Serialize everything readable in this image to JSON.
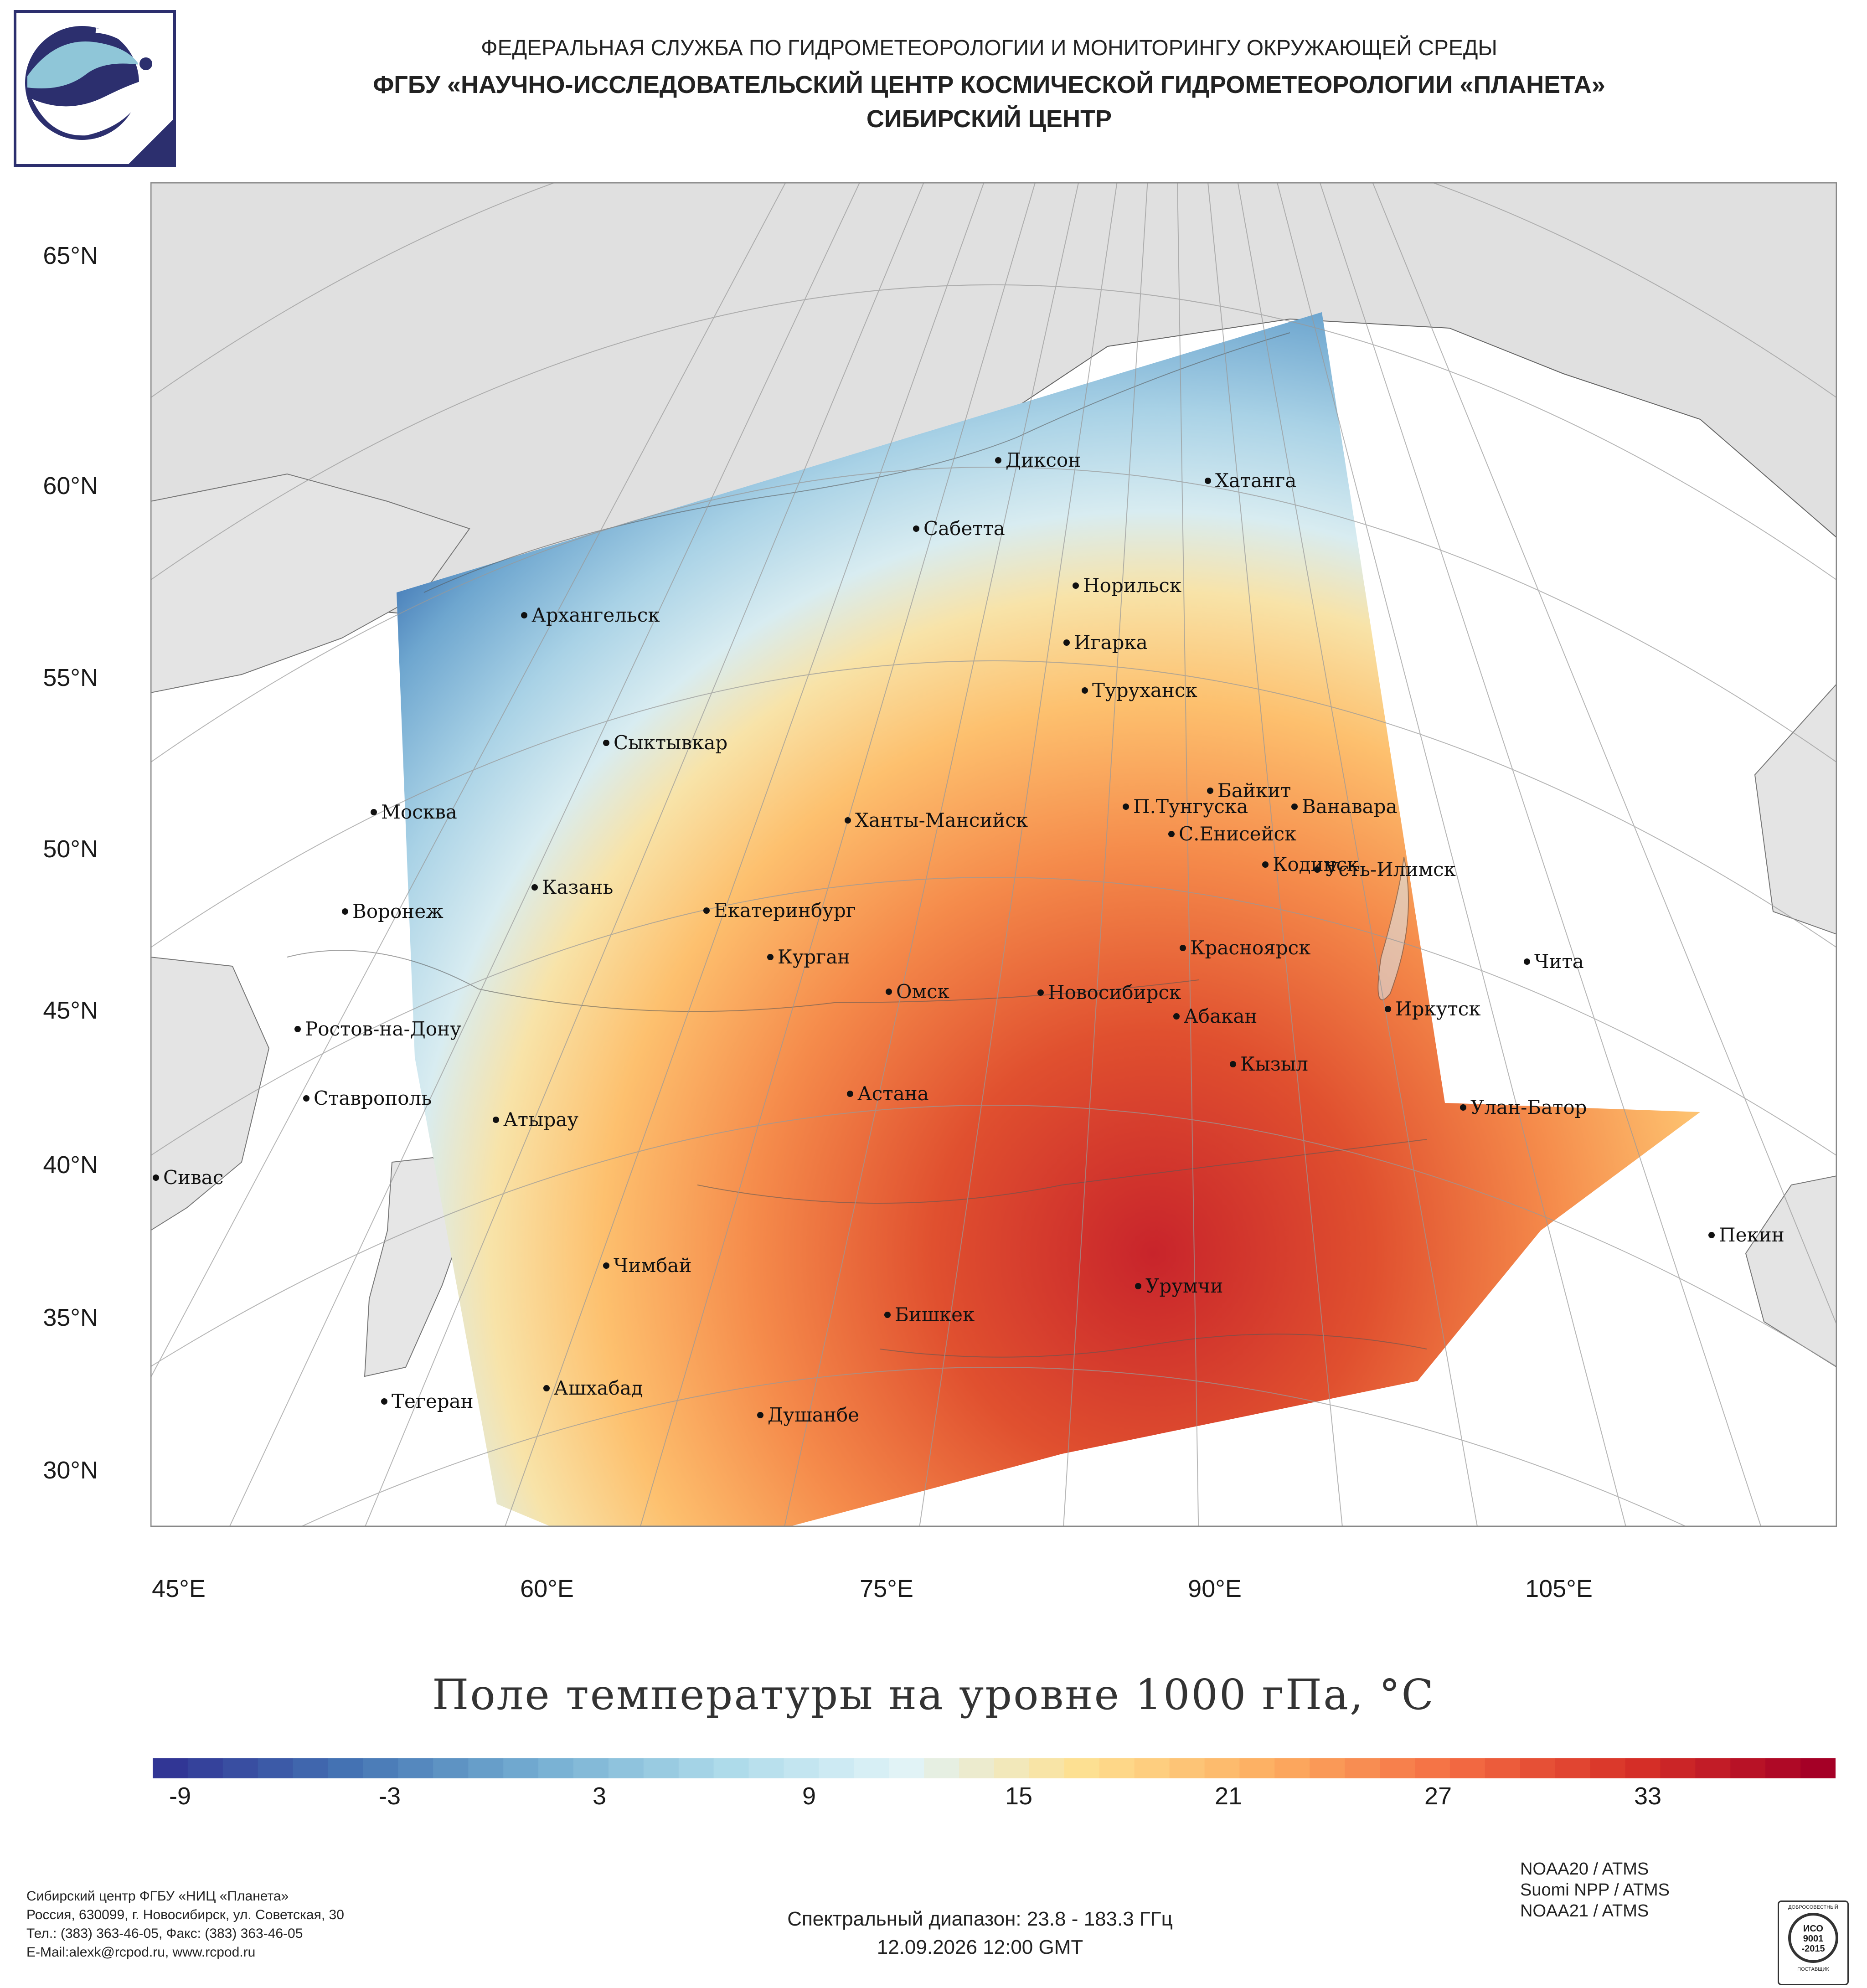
{
  "header": {
    "line1": "ФЕДЕРАЛЬНАЯ СЛУЖБА ПО ГИДРОМЕТЕОРОЛОГИИ И МОНИТОРИНГУ ОКРУЖАЮЩЕЙ СРЕДЫ",
    "line2": "ФГБУ «НАУЧНО-ИССЛЕДОВАТЕЛЬСКИЙ ЦЕНТР КОСМИЧЕСКОЙ ГИДРОМЕТЕОРОЛОГИИ «ПЛАНЕТА»",
    "line3": "СИБИРСКИЙ ЦЕНТР"
  },
  "lat_labels": [
    "65°N",
    "60°N",
    "55°N",
    "50°N",
    "45°N",
    "40°N",
    "35°N",
    "30°N"
  ],
  "lon_labels": [
    "45°E",
    "60°E",
    "75°E",
    "90°E",
    "105°E"
  ],
  "cities": [
    {
      "name": "Диксон"
    },
    {
      "name": "Хатанга"
    },
    {
      "name": "Сабетта"
    },
    {
      "name": "Норильск"
    },
    {
      "name": "Архангельск"
    },
    {
      "name": "Игарка"
    },
    {
      "name": "Туруханск"
    },
    {
      "name": "Сыктывкар"
    },
    {
      "name": "Байкит"
    },
    {
      "name": "П.Тунгуска"
    },
    {
      "name": "Ванавара"
    },
    {
      "name": "Москва"
    },
    {
      "name": "Ханты-Мансийск"
    },
    {
      "name": "С.Енисейск"
    },
    {
      "name": "Кодинск"
    },
    {
      "name": "Усть-Илимск"
    },
    {
      "name": "Казань"
    },
    {
      "name": "Воронеж"
    },
    {
      "name": "Екатеринбург"
    },
    {
      "name": "Красноярск"
    },
    {
      "name": "Курган"
    },
    {
      "name": "Чита"
    },
    {
      "name": "Омск"
    },
    {
      "name": "Новосибирск"
    },
    {
      "name": "Иркутск"
    },
    {
      "name": "Ростов-на-Дону"
    },
    {
      "name": "Абакан"
    },
    {
      "name": "Кызыл"
    },
    {
      "name": "Ставрополь"
    },
    {
      "name": "Астана"
    },
    {
      "name": "Улан-Батор"
    },
    {
      "name": "Атырау"
    },
    {
      "name": "Сивас"
    },
    {
      "name": "Пекин"
    },
    {
      "name": "Чимбай"
    },
    {
      "name": "Урумчи"
    },
    {
      "name": "Бишкек"
    },
    {
      "name": "Ашхабад"
    },
    {
      "name": "Тегеран"
    },
    {
      "name": "Душанбе"
    }
  ],
  "map_title": "Поле температуры на уровне 1000 гПа, °С",
  "colorbar": {
    "ticks": [
      "-9",
      "-3",
      "3",
      "9",
      "15",
      "21",
      "27",
      "33"
    ],
    "range": [
      -12,
      36
    ],
    "colors": [
      "#313695",
      "#4575b4",
      "#74add1",
      "#abd9e9",
      "#e0f3f8",
      "#fee090",
      "#fdae61",
      "#f46d43",
      "#d73027",
      "#a50026"
    ]
  },
  "footer": {
    "org_line1": "Сибирский центр ФГБУ «НИЦ «Планета»",
    "org_line2": "Россия, 630099, г. Новосибирск, ул. Советская, 30",
    "org_line3": "Тел.: (383) 363-46-05, Факс: (383) 363-46-05",
    "org_line4": "E-Mail:alexk@rcpod.ru, www.rcpod.ru",
    "spectral": "Спектральный диапазон: 23.8 - 183.3 ГГц",
    "datetime": "12.09.2026 12:00 GMT",
    "sat1": "NOAA20 / ATMS",
    "sat2": "Suomi NPP / ATMS",
    "sat3": "NOAA21 / ATMS",
    "badge_top": "ДОБРОСОВЕСТНЫЙ",
    "badge_main": "ИСО",
    "badge_num": "9001",
    "badge_year": "-2015",
    "badge_bottom": "ПОСТАВЩИК"
  }
}
